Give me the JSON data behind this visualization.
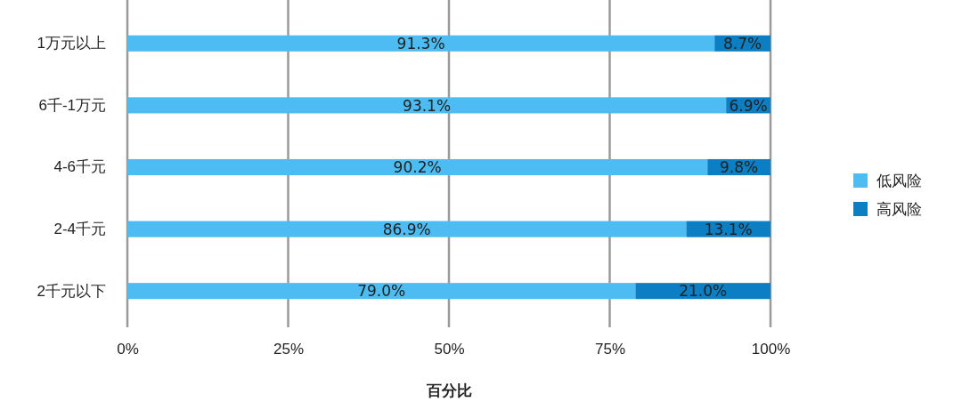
{
  "chart_data": {
    "type": "bar",
    "orientation": "horizontal",
    "stacked": true,
    "xlabel": "百分比",
    "categories": [
      "1万元以上",
      "6千-1万元",
      "4-6千元",
      "2-4千元",
      "2千元以下"
    ],
    "series": [
      {
        "name": "低风险",
        "color": "#4dbcf2",
        "values": [
          91.3,
          93.1,
          90.2,
          86.9,
          79.0
        ],
        "value_labels": [
          "91.3%",
          "93.1%",
          "90.2%",
          "86.9%",
          "79.0%"
        ]
      },
      {
        "name": "高风险",
        "color": "#0c7fc4",
        "values": [
          8.7,
          6.9,
          9.8,
          13.1,
          21.0
        ],
        "value_labels": [
          "8.7%",
          "6.9%",
          "9.8%",
          "13.1%",
          "21.0%"
        ]
      }
    ],
    "xlim": [
      0,
      100
    ],
    "xticks": [
      {
        "value": 0,
        "label": "0%"
      },
      {
        "value": 25,
        "label": "25%"
      },
      {
        "value": 50,
        "label": "50%"
      },
      {
        "value": 75,
        "label": "75%"
      },
      {
        "value": 100,
        "label": "100%"
      }
    ],
    "grid": "x",
    "legend": "right"
  }
}
